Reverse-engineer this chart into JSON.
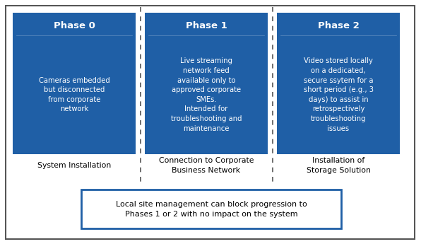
{
  "box_color": "#1F5FA6",
  "box_text_color": "#FFFFFF",
  "outer_border_color": "#555555",
  "label_text_color": "#000000",
  "bottom_box_border_color": "#1F5FA6",
  "phases": [
    "Phase 0",
    "Phase 1",
    "Phase 2"
  ],
  "phase_bodies": [
    "Cameras embedded\nbut disconnected\nfrom corporate\nnetwork",
    "Live streaming\nnetwork feed\navailable only to\napproved corporate\nSMEs.\nIntended for\ntroubleshooting and\nmaintenance",
    "Video stored locally\non a dedicated,\nsecure ssytem for a\nshort period (e.g., 3\ndays) to assist in\nretrospectively\ntroubleshooting\nissues"
  ],
  "labels": [
    "System Installation",
    "Connection to Corporate\nBusiness Network",
    "Installation of\nStorage Solution"
  ],
  "bottom_text": "Local site management can block progression to\nPhases 1 or 2 with no impact on the system",
  "fig_bg": "#FFFFFF",
  "dashed_line_color": "#555555",
  "outer_border_color2": "#888888"
}
